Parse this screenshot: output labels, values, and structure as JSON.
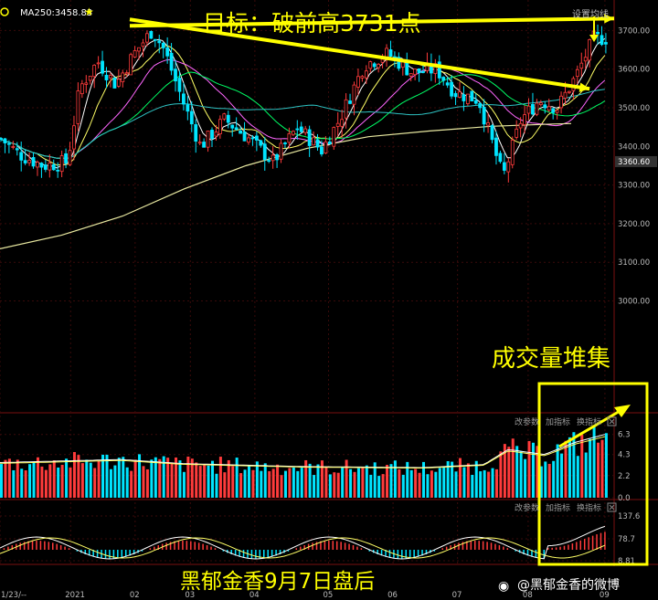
{
  "header": {
    "indicator_label": "MA250:3458.83",
    "settings_label": "设置均线"
  },
  "annotations": {
    "target_text": "目标：破前高3731点",
    "volume_text": "成交量堆集",
    "footer_text": "黑郁金香9月7日盘后",
    "watermark": "@黑郁金香的微博"
  },
  "panels": {
    "volume": {
      "tools": [
        "改参数",
        "加指标",
        "换指标"
      ]
    },
    "macd": {
      "tools": [
        "改参数",
        "加指标",
        "换指标"
      ]
    }
  },
  "colors": {
    "up": "#ff3b3b",
    "down": "#00e5ff",
    "annotation": "#ffff00",
    "ma_slow": "#e8e8a0",
    "ma_mid": "#2ec4c4",
    "ma_fast": "#ff66ff"
  },
  "chart_data": {
    "type": "candlestick",
    "price_axis": {
      "ticks": [
        "3700.00",
        "3600.00",
        "3500.00",
        "3400.00",
        "3360.60",
        "3300.00",
        "3200.00",
        "3100.00",
        "3000.00"
      ],
      "ylim": [
        2720,
        3760
      ],
      "last_price": "3360.60"
    },
    "volume_axis": {
      "ticks": [
        "6.3",
        "4.3",
        "2.2",
        "0.0"
      ],
      "ylim": [
        0,
        7
      ]
    },
    "macd_axis": {
      "ticks": [
        "137.6",
        "78.7",
        "8.81"
      ]
    },
    "x_ticks": [
      "1/23/--",
      "2021",
      "02",
      "03",
      "04",
      "05",
      "06",
      "07",
      "08",
      "09"
    ],
    "trendlines": [
      {
        "name": "前高水平线",
        "from": {
          "x": 0.2,
          "y": 3731
        },
        "to": {
          "x": 1.0,
          "y": 3731
        }
      },
      {
        "name": "下降趋势线",
        "from": {
          "x": 0.2,
          "y": 3731
        },
        "to": {
          "x": 0.96,
          "y": 3549
        }
      }
    ],
    "ma250": [
      [
        0,
        3135
      ],
      [
        0.1,
        3170
      ],
      [
        0.2,
        3220
      ],
      [
        0.3,
        3290
      ],
      [
        0.4,
        3350
      ],
      [
        0.5,
        3395
      ],
      [
        0.6,
        3425
      ],
      [
        0.7,
        3440
      ],
      [
        0.8,
        3452
      ],
      [
        0.9,
        3458
      ],
      [
        0.93,
        3459
      ]
    ],
    "price_path": [
      [
        0,
        3420
      ],
      [
        0.03,
        3380
      ],
      [
        0.07,
        3350
      ],
      [
        0.11,
        3360
      ],
      [
        0.13,
        3550
      ],
      [
        0.16,
        3620
      ],
      [
        0.19,
        3560
      ],
      [
        0.22,
        3640
      ],
      [
        0.25,
        3700
      ],
      [
        0.27,
        3650
      ],
      [
        0.3,
        3520
      ],
      [
        0.33,
        3400
      ],
      [
        0.37,
        3470
      ],
      [
        0.41,
        3420
      ],
      [
        0.45,
        3360
      ],
      [
        0.49,
        3450
      ],
      [
        0.53,
        3390
      ],
      [
        0.56,
        3470
      ],
      [
        0.6,
        3610
      ],
      [
        0.64,
        3640
      ],
      [
        0.68,
        3590
      ],
      [
        0.72,
        3600
      ],
      [
        0.75,
        3540
      ],
      [
        0.79,
        3520
      ],
      [
        0.83,
        3320
      ],
      [
        0.86,
        3470
      ],
      [
        0.89,
        3520
      ],
      [
        0.92,
        3500
      ],
      [
        0.95,
        3580
      ],
      [
        0.98,
        3680
      ]
    ],
    "volume_profile": [
      [
        0,
        3.5
      ],
      [
        0.2,
        3.8
      ],
      [
        0.3,
        3.4
      ],
      [
        0.5,
        3.1
      ],
      [
        0.7,
        3.0
      ],
      [
        0.8,
        3.3
      ],
      [
        0.84,
        4.8
      ],
      [
        0.9,
        4.3
      ],
      [
        0.95,
        5.5
      ],
      [
        1.0,
        6.3
      ]
    ]
  }
}
